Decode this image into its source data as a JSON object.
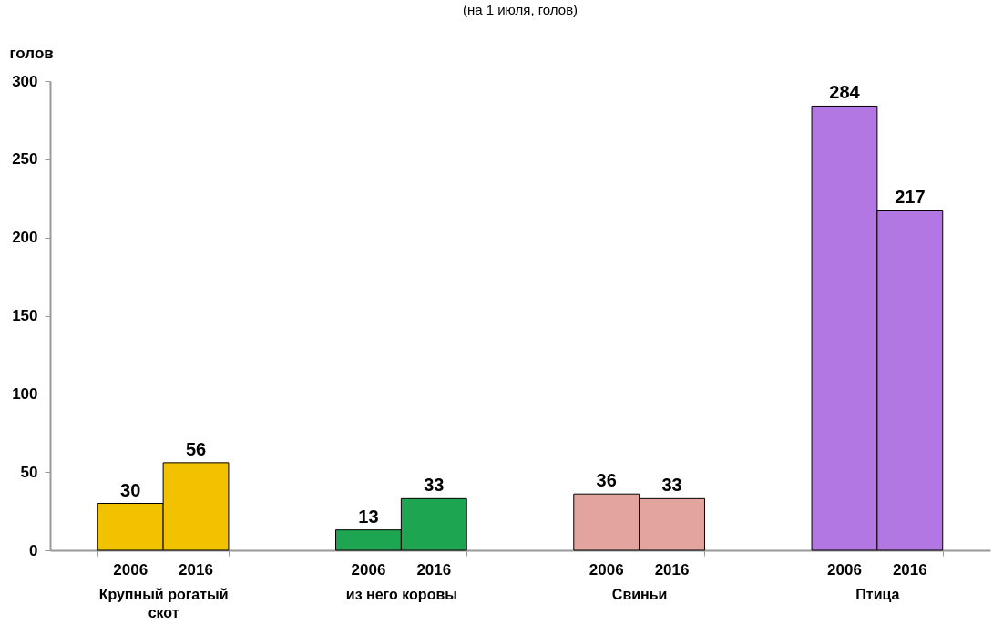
{
  "chart_data": {
    "type": "bar",
    "title": "(на 1 июля, голов)",
    "ylabel": "голов",
    "categories": [
      "Крупный рогатый скот",
      "из него коровы",
      "Свиньи",
      "Птица"
    ],
    "series": [
      {
        "name": "2006",
        "colors": [
          "#f2c200",
          "#1ea552",
          "#e3a49e",
          "#b277e3"
        ],
        "values": [
          30,
          13,
          36,
          284
        ]
      },
      {
        "name": "2016",
        "colors": [
          "#f2c200",
          "#1ea552",
          "#e3a49e",
          "#b277e3"
        ],
        "values": [
          56,
          33,
          33,
          217
        ]
      }
    ],
    "ylim": [
      0,
      300
    ],
    "yticks": [
      0,
      50,
      100,
      150,
      200,
      250,
      300
    ],
    "grid": false,
    "data_labels": true
  }
}
